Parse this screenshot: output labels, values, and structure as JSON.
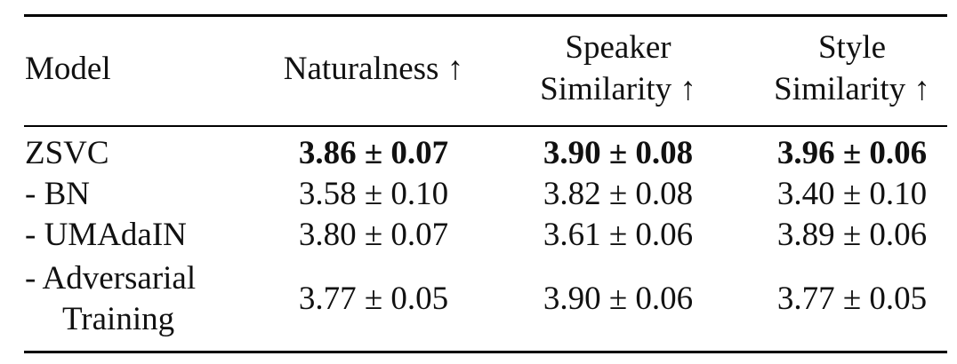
{
  "table": {
    "header": {
      "model": "Model",
      "naturalness": "Naturalness ↑",
      "speaker_line1": "Speaker",
      "speaker_line2": "Similarity ↑",
      "style_line1": "Style",
      "style_line2": "Similarity ↑"
    },
    "rows": [
      {
        "model": "ZSVC",
        "naturalness": "3.86 ± 0.07",
        "speaker": "3.90 ± 0.08",
        "style": "3.96 ± 0.06",
        "bold": true
      },
      {
        "model": "- BN",
        "naturalness": "3.58 ± 0.10",
        "speaker": "3.82 ± 0.08",
        "style": "3.40 ± 0.10"
      },
      {
        "model": "- UMAdaIN",
        "naturalness": "3.80 ± 0.07",
        "speaker": "3.61 ± 0.06",
        "style": "3.89 ± 0.06"
      },
      {
        "model_line1": "- Adversarial",
        "model_line2": "Training",
        "naturalness": "3.77 ± 0.05",
        "speaker": "3.90 ± 0.06",
        "style": "3.77 ± 0.05"
      }
    ]
  }
}
